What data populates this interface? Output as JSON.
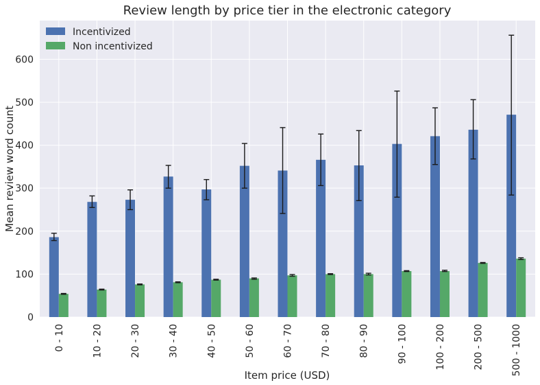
{
  "chart_data": {
    "type": "bar",
    "title": "Review length by price tier in the electronic category",
    "xlabel": "Item price (USD)",
    "ylabel": "Mean review word count",
    "ylim": [
      0,
      690
    ],
    "yticks": [
      0,
      100,
      200,
      300,
      400,
      500,
      600
    ],
    "grid": true,
    "legend_position": "top-left",
    "categories": [
      "0 - 10",
      "10 - 20",
      "20 - 30",
      "30 - 40",
      "40 - 50",
      "50 - 60",
      "60 - 70",
      "70 - 80",
      "80 - 90",
      "90 - 100",
      "100 - 200",
      "200 - 500",
      "500 - 1000"
    ],
    "series": [
      {
        "name": "Incentivized",
        "color": "#4c72b0",
        "values": [
          186,
          268,
          273,
          327,
          297,
          352,
          341,
          366,
          353,
          403,
          421,
          436,
          471
        ],
        "error_low": [
          178,
          255,
          250,
          300,
          273,
          300,
          241,
          306,
          271,
          279,
          355,
          368,
          284
        ],
        "error_high": [
          195,
          282,
          296,
          353,
          320,
          404,
          441,
          426,
          434,
          526,
          487,
          506,
          656
        ]
      },
      {
        "name": "Non incentivized",
        "color": "#55a868",
        "values": [
          54,
          64,
          76,
          81,
          87,
          90,
          97,
          100,
          100,
          107,
          107,
          126,
          136
        ],
        "error_low": [
          53,
          63,
          75,
          80,
          86,
          88,
          95,
          99,
          98,
          106,
          106,
          125,
          134
        ],
        "error_high": [
          55,
          65,
          77,
          82,
          88,
          91,
          99,
          101,
          102,
          108,
          109,
          127,
          138
        ]
      }
    ]
  }
}
